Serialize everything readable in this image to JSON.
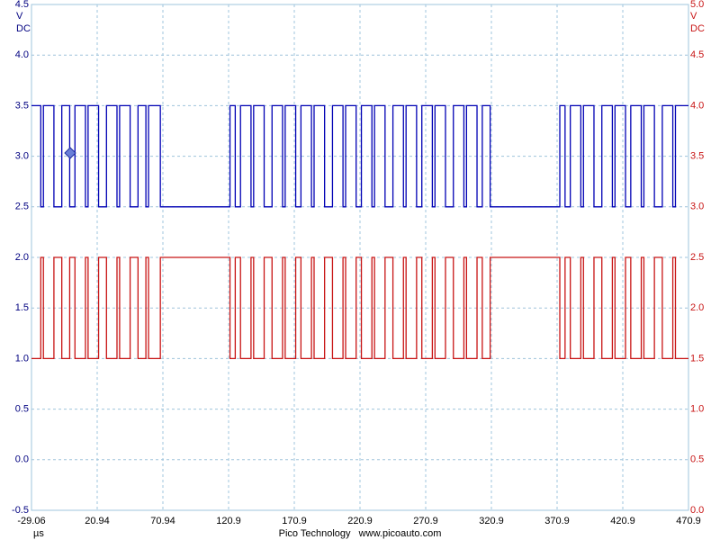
{
  "chart_data": {
    "type": "line",
    "ylabel": [
      "V",
      "DC"
    ],
    "y2label": [
      "V",
      "DC"
    ],
    "xlabel": "µs",
    "footer": "Pico Technology   www.picoauto.com",
    "xlim": [
      -29.06,
      470.94
    ],
    "xticks": [
      -29.06,
      20.94,
      70.94,
      {
        "value": 120.94,
        "label": "120.9"
      },
      {
        "value": 170.94,
        "label": "170.9"
      },
      {
        "value": 220.94,
        "label": "220.9"
      },
      {
        "value": 270.94,
        "label": "270.9"
      },
      {
        "value": 320.94,
        "label": "320.9"
      },
      {
        "value": 370.94,
        "label": "370.9"
      },
      {
        "value": 420.94,
        "label": "420.9"
      },
      {
        "value": 470.94,
        "label": "470.9"
      }
    ],
    "ylim": [
      -0.5,
      4.5
    ],
    "yticks": [
      4.5,
      {
        "value": 4,
        "label": "4.0"
      },
      3.5,
      {
        "value": 3,
        "label": "3.0"
      },
      2.5,
      {
        "value": 2,
        "label": "2.0"
      },
      1.5,
      {
        "value": 1,
        "label": "1.0"
      },
      0.5,
      {
        "value": 0,
        "label": "0.0"
      },
      -0.5
    ],
    "y2lim": [
      0,
      5
    ],
    "y2ticks": [
      {
        "value": 5,
        "label": "5.0"
      },
      4.5,
      {
        "value": 4,
        "label": "4.0"
      },
      3.5,
      {
        "value": 3,
        "label": "3.0"
      },
      2.5,
      {
        "value": 2,
        "label": "2.0"
      },
      1.5,
      {
        "value": 1,
        "label": "1.0"
      },
      0.5,
      {
        "value": 0,
        "label": "0.0"
      }
    ],
    "grid": true,
    "x": [
      -29.06,
      -22,
      -22,
      -20,
      -20,
      -12,
      -12,
      -6,
      -6,
      0,
      0,
      4,
      4,
      12,
      12,
      14,
      14,
      22,
      22,
      28,
      28,
      36,
      36,
      38,
      38,
      46,
      46,
      52,
      52,
      58,
      58,
      60,
      60,
      69,
      69,
      122,
      122,
      126,
      126,
      130,
      130,
      138,
      138,
      140,
      140,
      148,
      148,
      154,
      154,
      162,
      162,
      164,
      164,
      172,
      172,
      176,
      176,
      184,
      184,
      186,
      186,
      194,
      194,
      200,
      200,
      208,
      208,
      210,
      210,
      218,
      218,
      222,
      222,
      230,
      230,
      232,
      232,
      240,
      240,
      246,
      246,
      254,
      254,
      256,
      256,
      264,
      264,
      268,
      268,
      276,
      276,
      278,
      278,
      286,
      286,
      292,
      292,
      300,
      300,
      302,
      302,
      310,
      310,
      314,
      314,
      320,
      320,
      373,
      373,
      377,
      377,
      381,
      381,
      389,
      389,
      391,
      391,
      399,
      399,
      405,
      405,
      413,
      413,
      415,
      415,
      423,
      423,
      427,
      427,
      435,
      435,
      437,
      437,
      445,
      445,
      451,
      451,
      459,
      459,
      461,
      461,
      470.94
    ],
    "series": [
      {
        "color": "#0000b4",
        "values": [
          3.5,
          3.5,
          2.5,
          2.5,
          3.5,
          3.5,
          2.5,
          2.5,
          3.5,
          3.5,
          2.5,
          2.5,
          3.5,
          3.5,
          2.5,
          2.5,
          3.5,
          3.5,
          2.5,
          2.5,
          3.5,
          3.5,
          2.5,
          2.5,
          3.5,
          3.5,
          2.5,
          2.5,
          3.5,
          3.5,
          2.5,
          2.5,
          3.5,
          3.5,
          2.5,
          2.5,
          3.5,
          3.5,
          2.5,
          2.5,
          3.5,
          3.5,
          2.5,
          2.5,
          3.5,
          3.5,
          2.5,
          2.5,
          3.5,
          3.5,
          2.5,
          2.5,
          3.5,
          3.5,
          2.5,
          2.5,
          3.5,
          3.5,
          2.5,
          2.5,
          3.5,
          3.5,
          2.5,
          2.5,
          3.5,
          3.5,
          2.5,
          2.5,
          3.5,
          3.5,
          2.5,
          2.5,
          3.5,
          3.5,
          2.5,
          2.5,
          3.5,
          3.5,
          2.5,
          2.5,
          3.5,
          3.5,
          2.5,
          2.5,
          3.5,
          3.5,
          2.5,
          2.5,
          3.5,
          3.5,
          2.5,
          2.5,
          3.5,
          3.5,
          2.5,
          2.5,
          3.5,
          3.5,
          2.5,
          2.5,
          3.5,
          3.5,
          2.5,
          2.5,
          3.5,
          3.5,
          2.5,
          2.5,
          3.5,
          3.5,
          2.5,
          2.5,
          3.5,
          3.5,
          2.5,
          2.5,
          3.5,
          3.5,
          2.5,
          2.5,
          3.5,
          3.5,
          2.5,
          2.5,
          3.5,
          3.5,
          2.5,
          2.5,
          3.5,
          3.5,
          2.5,
          2.5,
          3.5,
          3.5,
          2.5,
          2.5,
          3.5,
          3.5,
          2.5,
          2.5,
          3.5,
          3.5
        ]
      },
      {
        "color": "#c81414",
        "axis": "y2",
        "values": [
          1.5,
          1.5,
          2.5,
          2.5,
          1.5,
          1.5,
          2.5,
          2.5,
          1.5,
          1.5,
          2.5,
          2.5,
          1.5,
          1.5,
          2.5,
          2.5,
          1.5,
          1.5,
          2.5,
          2.5,
          1.5,
          1.5,
          2.5,
          2.5,
          1.5,
          1.5,
          2.5,
          2.5,
          1.5,
          1.5,
          2.5,
          2.5,
          1.5,
          1.5,
          2.5,
          2.5,
          1.5,
          1.5,
          2.5,
          2.5,
          1.5,
          1.5,
          2.5,
          2.5,
          1.5,
          1.5,
          2.5,
          2.5,
          1.5,
          1.5,
          2.5,
          2.5,
          1.5,
          1.5,
          2.5,
          2.5,
          1.5,
          1.5,
          2.5,
          2.5,
          1.5,
          1.5,
          2.5,
          2.5,
          1.5,
          1.5,
          2.5,
          2.5,
          1.5,
          1.5,
          2.5,
          2.5,
          1.5,
          1.5,
          2.5,
          2.5,
          1.5,
          1.5,
          2.5,
          2.5,
          1.5,
          1.5,
          2.5,
          2.5,
          1.5,
          1.5,
          2.5,
          2.5,
          1.5,
          1.5,
          2.5,
          2.5,
          1.5,
          1.5,
          2.5,
          2.5,
          1.5,
          1.5,
          2.5,
          2.5,
          1.5,
          1.5,
          2.5,
          2.5,
          1.5,
          1.5,
          2.5,
          2.5,
          1.5,
          1.5,
          2.5,
          2.5,
          1.5,
          1.5,
          2.5,
          2.5,
          1.5,
          1.5,
          2.5,
          2.5,
          1.5,
          1.5,
          2.5,
          2.5,
          1.5,
          1.5,
          2.5,
          2.5,
          1.5,
          1.5,
          2.5,
          2.5,
          1.5,
          1.5,
          2.5,
          2.5,
          1.5,
          1.5,
          2.5,
          2.5,
          1.5,
          1.5
        ]
      }
    ]
  }
}
